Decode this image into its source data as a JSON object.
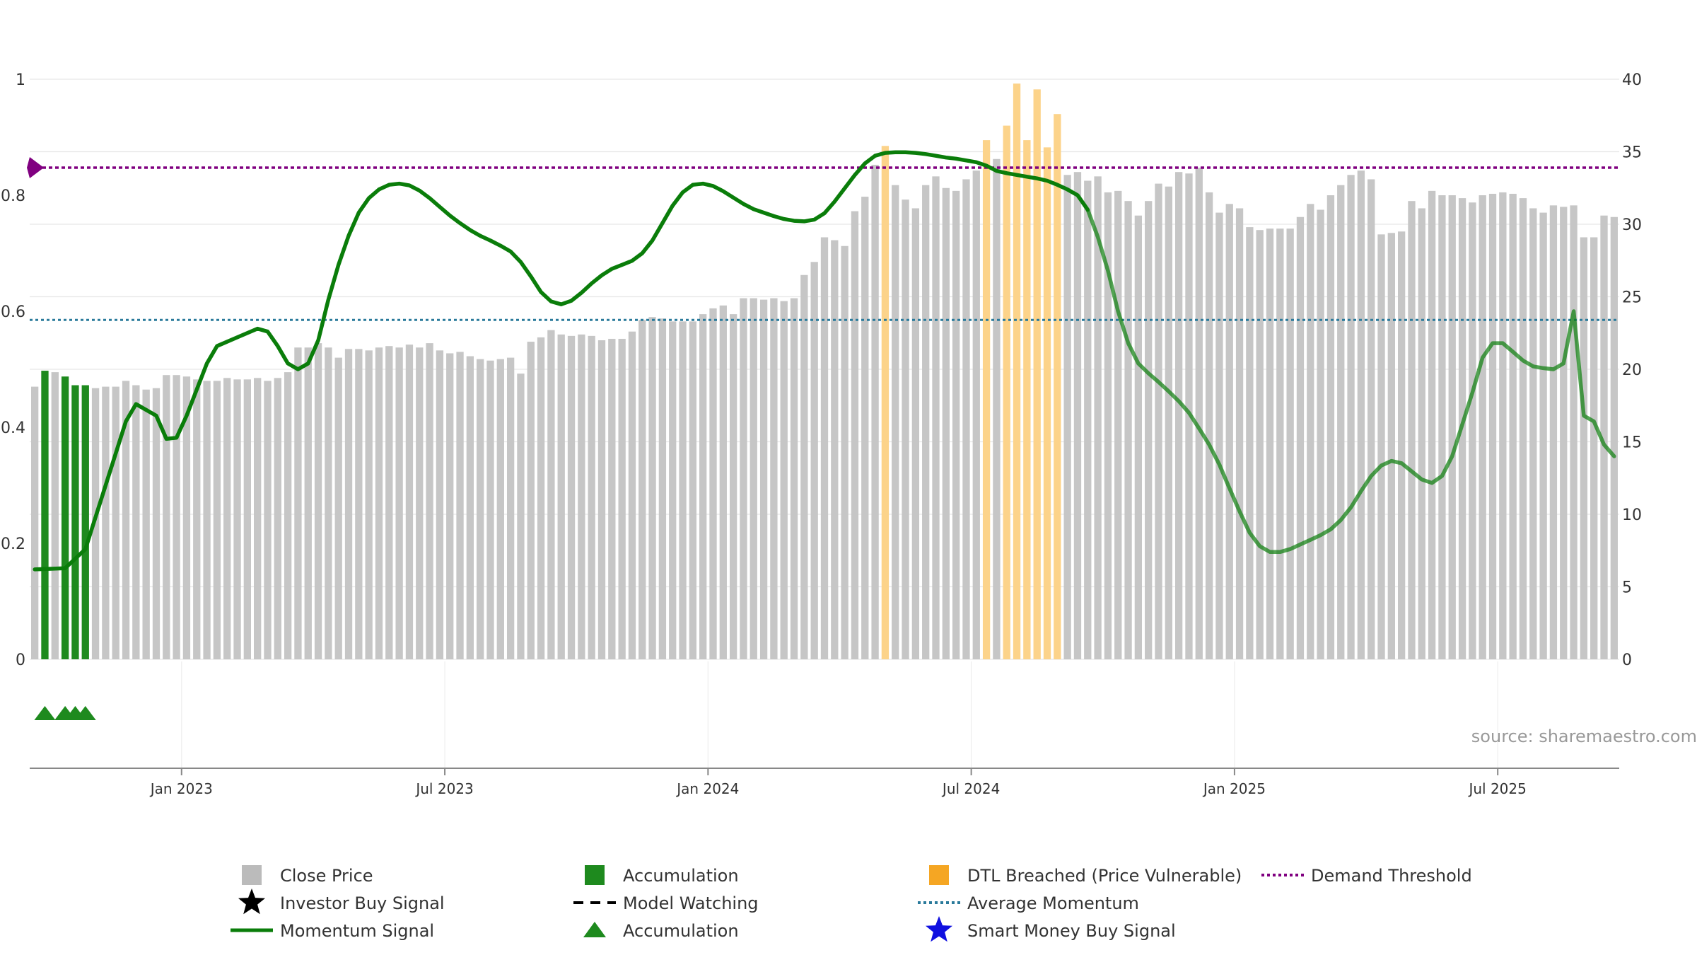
{
  "chart_data": {
    "type": "bar",
    "source": "source: sharemaestro.com",
    "left_axis": {
      "range": [
        0,
        1
      ],
      "ticks": [
        "0",
        "0.2",
        "0.4",
        "0.6",
        "0.8",
        "1"
      ]
    },
    "right_axis": {
      "range": [
        0,
        40
      ],
      "ticks": [
        "0",
        "5",
        "10",
        "15",
        "20",
        "25",
        "30",
        "35",
        "40"
      ]
    },
    "x_ticks": [
      {
        "label": "Jan 2023",
        "bar": 15
      },
      {
        "label": "Jul 2023",
        "bar": 41
      },
      {
        "label": "Jan 2024",
        "bar": 67
      },
      {
        "label": "Jul 2024",
        "bar": 93
      },
      {
        "label": "Jan 2025",
        "bar": 119
      },
      {
        "label": "Jul 2025",
        "bar": 145
      }
    ],
    "close_price": [
      18.8,
      19.9,
      19.8,
      19.5,
      18.9,
      18.9,
      18.7,
      18.8,
      18.8,
      19.2,
      18.9,
      18.6,
      18.7,
      19.6,
      19.6,
      19.5,
      19.3,
      19.2,
      19.2,
      19.4,
      19.3,
      19.3,
      19.4,
      19.2,
      19.4,
      19.8,
      21.5,
      21.5,
      21.8,
      21.5,
      20.8,
      21.4,
      21.4,
      21.3,
      21.5,
      21.6,
      21.5,
      21.7,
      21.5,
      21.8,
      21.3,
      21.1,
      21.2,
      20.9,
      20.7,
      20.6,
      20.7,
      20.8,
      19.7,
      21.9,
      22.2,
      22.7,
      22.4,
      22.3,
      22.4,
      22.3,
      22,
      22.1,
      22.1,
      22.6,
      23.4,
      23.6,
      23.5,
      23.3,
      23.3,
      23.3,
      23.8,
      24.2,
      24.4,
      23.8,
      24.9,
      24.9,
      24.8,
      24.9,
      24.7,
      24.9,
      26.5,
      27.4,
      29.1,
      28.9,
      28.5,
      30.9,
      31.9,
      34.1,
      35.4,
      32.7,
      31.7,
      31.1,
      32.7,
      33.3,
      32.5,
      32.3,
      33.1,
      33.7,
      35.8,
      34.5,
      36.8,
      39.7,
      35.8,
      39.3,
      35.3,
      37.6,
      33.4,
      33.6,
      33,
      33.3,
      32.2,
      32.3,
      31.6,
      30.6,
      31.6,
      32.8,
      32.6,
      33.6,
      33.5,
      33.9,
      32.2,
      30.8,
      31.4,
      31.1,
      29.8,
      29.6,
      29.7,
      29.7,
      29.7,
      30.5,
      31.4,
      31,
      32,
      32.7,
      33.4,
      33.7,
      33.1,
      29.3,
      29.4,
      29.5,
      31.6,
      31.1,
      32.3,
      32,
      32,
      31.8,
      31.5,
      32,
      32.1,
      32.2,
      32.1,
      31.8,
      31.1,
      30.8,
      31.3,
      31.2,
      31.3,
      29.1,
      29.1,
      30.6,
      30.5
    ],
    "accumulation_bars": [
      1,
      3,
      4,
      5
    ],
    "dtl_breached_bars": [
      84,
      94,
      96,
      97,
      98,
      99,
      100,
      101
    ],
    "accumulation_triangles": [
      1,
      3,
      4,
      5
    ],
    "momentum_signal": [
      [
        0,
        0.155
      ],
      [
        3,
        0.157
      ],
      [
        5,
        0.19
      ],
      [
        7,
        0.3
      ],
      [
        9,
        0.41
      ],
      [
        10,
        0.44
      ],
      [
        12,
        0.42
      ],
      [
        13,
        0.38
      ],
      [
        14,
        0.382
      ],
      [
        15,
        0.42
      ],
      [
        17,
        0.51
      ],
      [
        18,
        0.54
      ],
      [
        20,
        0.555
      ],
      [
        22,
        0.57
      ],
      [
        23,
        0.565
      ],
      [
        24,
        0.54
      ],
      [
        25,
        0.51
      ],
      [
        26,
        0.5
      ],
      [
        27,
        0.51
      ],
      [
        28,
        0.55
      ],
      [
        29,
        0.62
      ],
      [
        30,
        0.68
      ],
      [
        31,
        0.73
      ],
      [
        32,
        0.77
      ],
      [
        33,
        0.795
      ],
      [
        34,
        0.81
      ],
      [
        35,
        0.818
      ],
      [
        36,
        0.82
      ],
      [
        37,
        0.817
      ],
      [
        38,
        0.808
      ],
      [
        39,
        0.795
      ],
      [
        40,
        0.78
      ],
      [
        41,
        0.765
      ],
      [
        42,
        0.752
      ],
      [
        43,
        0.74
      ],
      [
        44,
        0.73
      ],
      [
        45,
        0.722
      ],
      [
        46,
        0.713
      ],
      [
        47,
        0.703
      ],
      [
        48,
        0.685
      ],
      [
        49,
        0.66
      ],
      [
        50,
        0.633
      ],
      [
        51,
        0.617
      ],
      [
        52,
        0.612
      ],
      [
        53,
        0.618
      ],
      [
        54,
        0.632
      ],
      [
        55,
        0.648
      ],
      [
        56,
        0.662
      ],
      [
        57,
        0.673
      ],
      [
        58,
        0.68
      ],
      [
        59,
        0.687
      ],
      [
        60,
        0.7
      ],
      [
        61,
        0.722
      ],
      [
        62,
        0.752
      ],
      [
        63,
        0.782
      ],
      [
        64,
        0.805
      ],
      [
        65,
        0.818
      ],
      [
        66,
        0.82
      ],
      [
        67,
        0.816
      ],
      [
        68,
        0.807
      ],
      [
        69,
        0.796
      ],
      [
        70,
        0.785
      ],
      [
        71,
        0.776
      ],
      [
        72,
        0.77
      ],
      [
        73,
        0.764
      ],
      [
        74,
        0.759
      ],
      [
        75,
        0.756
      ],
      [
        76,
        0.755
      ],
      [
        77,
        0.758
      ],
      [
        78,
        0.769
      ],
      [
        79,
        0.789
      ],
      [
        80,
        0.812
      ],
      [
        81,
        0.835
      ],
      [
        82,
        0.855
      ],
      [
        83,
        0.868
      ],
      [
        84,
        0.873
      ],
      [
        85,
        0.874
      ],
      [
        86,
        0.874
      ],
      [
        87,
        0.873
      ],
      [
        88,
        0.871
      ],
      [
        89,
        0.868
      ],
      [
        90,
        0.865
      ],
      [
        91,
        0.863
      ],
      [
        92,
        0.86
      ],
      [
        93,
        0.857
      ],
      [
        94,
        0.851
      ],
      [
        95,
        0.842
      ],
      [
        96,
        0.838
      ],
      [
        97,
        0.835
      ],
      [
        98,
        0.832
      ],
      [
        99,
        0.829
      ],
      [
        100,
        0.825
      ],
      [
        101,
        0.818
      ],
      [
        102,
        0.81
      ],
      [
        103,
        0.8
      ],
      [
        104,
        0.775
      ],
      [
        105,
        0.728
      ],
      [
        106,
        0.67
      ],
      [
        107,
        0.6
      ],
      [
        108,
        0.545
      ],
      [
        109,
        0.51
      ],
      [
        110,
        0.493
      ],
      [
        111,
        0.478
      ],
      [
        112,
        0.462
      ],
      [
        113,
        0.445
      ],
      [
        114,
        0.425
      ],
      [
        115,
        0.398
      ],
      [
        116,
        0.37
      ],
      [
        117,
        0.336
      ],
      [
        118,
        0.295
      ],
      [
        119,
        0.255
      ],
      [
        120,
        0.218
      ],
      [
        121,
        0.195
      ],
      [
        122,
        0.185
      ],
      [
        123,
        0.185
      ],
      [
        124,
        0.19
      ],
      [
        125,
        0.198
      ],
      [
        126,
        0.206
      ],
      [
        127,
        0.214
      ],
      [
        128,
        0.224
      ],
      [
        129,
        0.24
      ],
      [
        130,
        0.262
      ],
      [
        131,
        0.29
      ],
      [
        132,
        0.316
      ],
      [
        133,
        0.334
      ],
      [
        134,
        0.342
      ],
      [
        135,
        0.338
      ],
      [
        136,
        0.324
      ],
      [
        137,
        0.31
      ],
      [
        138,
        0.304
      ],
      [
        139,
        0.316
      ],
      [
        140,
        0.35
      ],
      [
        141,
        0.405
      ],
      [
        142,
        0.46
      ],
      [
        143,
        0.52
      ],
      [
        144,
        0.545
      ],
      [
        145,
        0.545
      ],
      [
        146,
        0.53
      ],
      [
        147,
        0.515
      ],
      [
        148,
        0.505
      ],
      [
        149,
        0.502
      ],
      [
        150,
        0.5
      ],
      [
        151,
        0.51
      ],
      [
        152,
        0.6
      ],
      [
        153,
        0.42
      ],
      [
        154,
        0.41
      ],
      [
        155,
        0.37
      ],
      [
        156,
        0.35
      ]
    ],
    "momentum_fade_from_bar": 104,
    "average_momentum": 0.585,
    "demand_threshold": 0.8475,
    "legend": [
      {
        "label": "Close Price",
        "symbol": "square",
        "color": "#bbbbbb"
      },
      {
        "label": "Investor Buy Signal",
        "symbol": "star",
        "color": "#000000"
      },
      {
        "label": "Momentum Signal",
        "symbol": "line",
        "color": "#0a7d0a"
      },
      {
        "label": "Accumulation",
        "symbol": "square",
        "color": "#1e8a1e"
      },
      {
        "label": "Model Watching",
        "symbol": "dashed",
        "color": "#000000"
      },
      {
        "label": "Accumulation",
        "symbol": "triangle",
        "color": "#1e8a1e"
      },
      {
        "label": "DTL Breached (Price Vulnerable)",
        "symbol": "square",
        "color": "#f5a623"
      },
      {
        "label": "Average Momentum",
        "symbol": "dotted",
        "color": "#2a7a9b"
      },
      {
        "label": "Smart Money Buy Signal",
        "symbol": "star",
        "color": "#1010e0"
      },
      {
        "label": "Demand Threshold",
        "symbol": "dotted",
        "color": "#800080"
      }
    ],
    "colors": {
      "close": "#c6c6c6",
      "accumulation": "#1e8a1e",
      "dtl": "#fcd38a",
      "momentum": "#0a7d0a",
      "average": "#2a7a9b",
      "demand": "#800080"
    }
  }
}
